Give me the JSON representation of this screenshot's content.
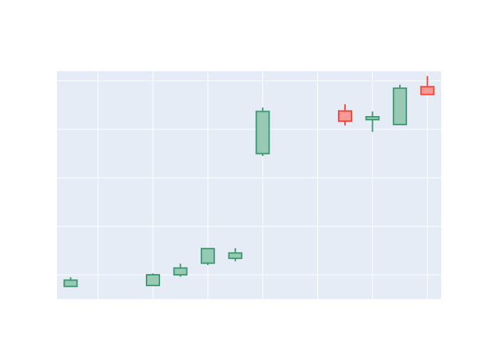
{
  "chart_data": {
    "type": "candlestick",
    "title": "",
    "xlabel": "",
    "ylabel": "",
    "xlim": [
      0.5,
      14.5
    ],
    "ylim": [
      0,
      4.7
    ],
    "grid": true,
    "legend": "none",
    "colors": {
      "increasing_line": "#3D9970",
      "increasing_fill": "#98C9B4",
      "decreasing_line": "#FF4136",
      "decreasing_fill": "#F79A96",
      "plot_bg": "#E5ECF6",
      "grid": "#FFFFFF"
    },
    "candles": [
      {
        "x": 1,
        "open": 0.26,
        "high": 0.45,
        "low": 0.26,
        "close": 0.39
      },
      {
        "x": 4,
        "open": 0.28,
        "high": 0.53,
        "low": 0.27,
        "close": 0.5
      },
      {
        "x": 5,
        "open": 0.5,
        "high": 0.73,
        "low": 0.46,
        "close": 0.64
      },
      {
        "x": 6,
        "open": 0.74,
        "high": 1.04,
        "low": 0.7,
        "close": 1.04
      },
      {
        "x": 7,
        "open": 0.84,
        "high": 1.05,
        "low": 0.78,
        "close": 0.95
      },
      {
        "x": 8,
        "open": 3.0,
        "high": 3.95,
        "low": 2.95,
        "close": 3.87
      },
      {
        "x": 11,
        "open": 3.88,
        "high": 4.02,
        "low": 3.58,
        "close": 3.67
      },
      {
        "x": 12,
        "open": 3.7,
        "high": 3.87,
        "low": 3.45,
        "close": 3.76
      },
      {
        "x": 13,
        "open": 3.6,
        "high": 4.42,
        "low": 3.6,
        "close": 4.35
      },
      {
        "x": 14,
        "open": 4.38,
        "high": 4.6,
        "low": 4.22,
        "close": 4.22
      }
    ]
  }
}
